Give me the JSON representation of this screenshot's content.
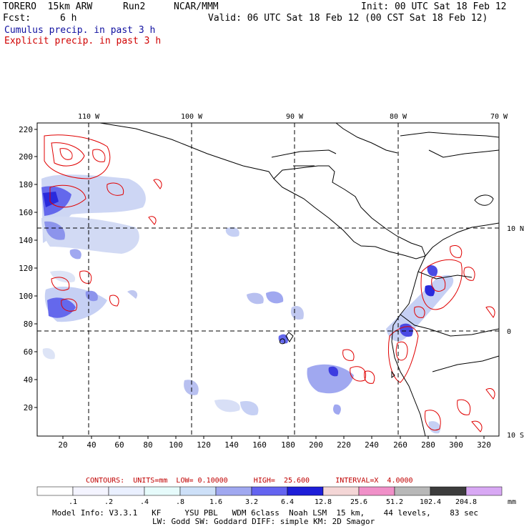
{
  "header": {
    "model": "TORERO  15km ARW",
    "run": "Run2",
    "org": "NCAR/MMM",
    "init": "Init: 00 UTC Sat 18 Feb 12",
    "fcst_label": "Fcst:",
    "fcst_value": "6 h",
    "valid": "Valid: 06 UTC Sat 18 Feb 12 (00 CST Sat 18 Feb 12)",
    "cumulus_label": "Cumulus precip. in past 3 h",
    "explicit_label": "Explicit precip. in past 3 h"
  },
  "map": {
    "lon_labels": [
      "110 W",
      "100 W",
      "90 W",
      "80 W",
      "70 W"
    ],
    "lat_labels": [
      "10 N",
      "0",
      "10 S"
    ],
    "y_ticks": [
      "220",
      "200",
      "180",
      "160",
      "140",
      "120",
      "100",
      "80",
      "60",
      "40",
      "20"
    ],
    "x_ticks": [
      "20",
      "40",
      "60",
      "80",
      "100",
      "120",
      "140",
      "160",
      "180",
      "200",
      "220",
      "240",
      "260",
      "280",
      "300",
      "320"
    ],
    "colors": {
      "coast": "#000000",
      "grid": "#000000",
      "cumulus": "#2020e0",
      "explicit": "#e00000"
    }
  },
  "contours_text": "CONTOURS:  UNITS=mm  LOW= 0.10000      HIGH=  25.600      INTERVAL=X  4.0000",
  "legend": {
    "thresholds": [
      ".1",
      ".2",
      ".4",
      ".8",
      "1.6",
      "3.2",
      "6.4",
      "12.8",
      "25.6",
      "51.2",
      "102.4",
      "204.8"
    ],
    "colors": [
      "#ffffff",
      "#f4f4ff",
      "#eaf0ff",
      "#e6fbfb",
      "#cde0f8",
      "#a0a8f0",
      "#6464f0",
      "#1e1ed8",
      "#f4d6d6",
      "#f090c8",
      "#b8b8b8",
      "#3c3c3c",
      "#d8a8f4"
    ],
    "unit": "mm"
  },
  "model_info": {
    "line1": "Model Info: V3.3.1   KF     YSU PBL   WDM 6class  Noah LSM  15 km,    44 levels,    83 sec",
    "line2": "LW: Godd SW: Goddard DIFF: simple KM: 2D Smagor"
  }
}
